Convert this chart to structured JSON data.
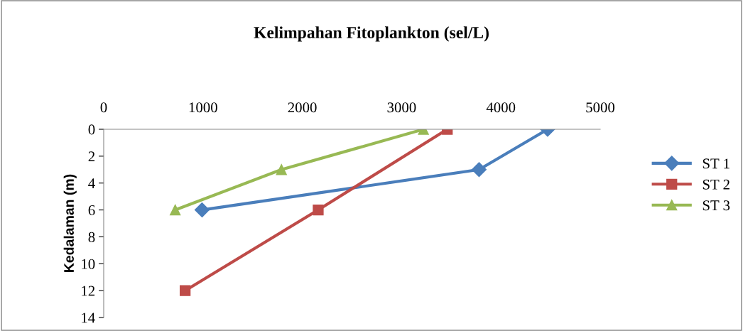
{
  "chart_data": {
    "type": "line",
    "title": "Kelimpahan Fitoplankton (sel/L)",
    "ylabel": "Kedalaman (m)",
    "xlim": [
      0,
      5000
    ],
    "xticks": [
      0,
      1000,
      2000,
      3000,
      4000,
      5000
    ],
    "ylim": [
      14,
      0
    ],
    "yticks": [
      0,
      2,
      4,
      6,
      8,
      10,
      12,
      14
    ],
    "grid": false,
    "legend": "right",
    "series": [
      {
        "name": "ST 1",
        "color": "#4a7ebb",
        "marker": "diamond",
        "x": [
          4470,
          3780,
          990
        ],
        "values": [
          0,
          3,
          6
        ]
      },
      {
        "name": "ST 2",
        "color": "#be4b48",
        "marker": "square",
        "x": [
          3460,
          2160,
          820
        ],
        "values": [
          0,
          6,
          12
        ]
      },
      {
        "name": "ST 3",
        "color": "#98b954",
        "marker": "triangle",
        "x": [
          3220,
          1790,
          720
        ],
        "values": [
          0,
          3,
          6
        ]
      }
    ]
  }
}
